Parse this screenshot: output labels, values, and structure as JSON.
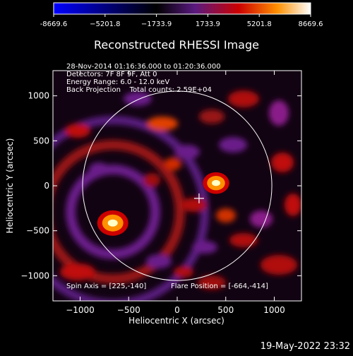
{
  "chart_data": {
    "type": "heatmap",
    "title": "Reconstructed RHESSI Image",
    "xlabel": "Heliocentric X (arcsec)",
    "ylabel": "Heliocentric Y (arcsec)",
    "xlim": [
      -1280,
      1280
    ],
    "ylim": [
      -1280,
      1280
    ],
    "xticks": [
      -1000,
      -500,
      0,
      500,
      1000
    ],
    "yticks": [
      -1000,
      -500,
      0,
      500,
      1000
    ],
    "colorbar": {
      "range": [
        -8669.6,
        8669.6
      ],
      "tick_values": [
        -8669.6,
        -5201.8,
        -1733.9,
        1733.9,
        5201.8,
        8669.6
      ],
      "tick_labels": [
        "-8669.6",
        "−5201.8",
        "−1733.9",
        "1733.9",
        "5201.8",
        "8669.6"
      ],
      "colors": [
        "#0000ff",
        "#000000",
        "#5a1a80",
        "#cc0000",
        "#ff9000",
        "#ffffff"
      ]
    },
    "info_lines": [
      "28-Nov-2014 01:16:36.000 to 01:20:36.000",
      "Detectors: 7F 8F 9F, Att 0",
      "Energy Range: 6.0 - 12.0 keV",
      "Back Projection    Total counts: 2.59E+04"
    ],
    "footer_left": "Spin Axis = [225,-140]",
    "footer_right": "Flare Position = [-664,-414]",
    "spin_axis": [
      225,
      -140
    ],
    "flare_position": [
      -664,
      -414
    ],
    "solar_limb_radius_arcsec": 975,
    "sources": [
      {
        "x": -664,
        "y": -414,
        "rel_intensity": 1.0
      },
      {
        "x": 400,
        "y": 30,
        "rel_intensity": 0.85
      }
    ]
  },
  "timestamp": "19-May-2022 23:32"
}
